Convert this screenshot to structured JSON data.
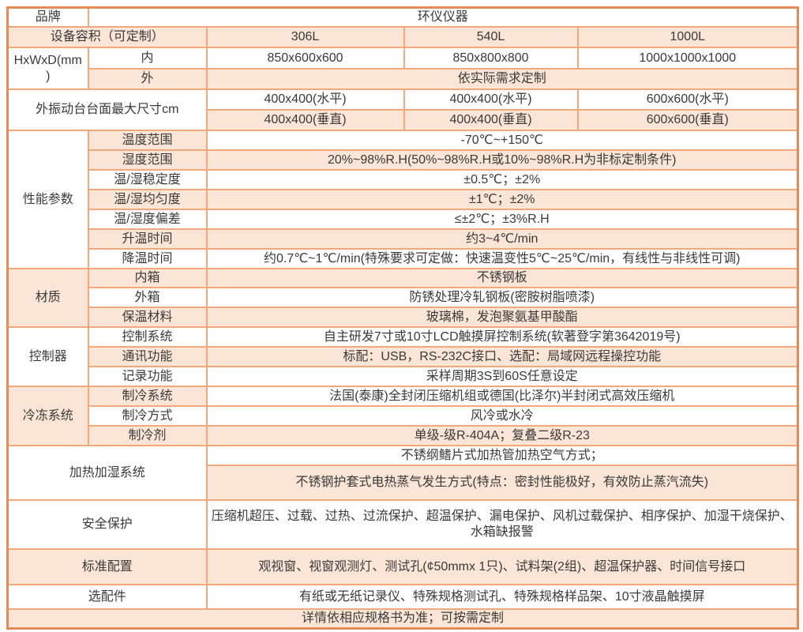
{
  "colors": {
    "outer_border": "#e88a55",
    "inner_border": "#f1a87b",
    "band_fill": "#fbe5d6",
    "text": "#3a3a3a",
    "page_background": "#ffffff"
  },
  "table": {
    "columns": [
      102,
      150,
      250,
      220,
      279
    ],
    "rows": [
      {
        "h": 23,
        "cells": [
          {
            "t": "品牌",
            "name": "brand-label"
          },
          {
            "t": "环仪仪器",
            "c": 4,
            "name": "brand-value"
          }
        ]
      },
      {
        "h": 26,
        "cells": [
          {
            "t": "设备容积（可定制）",
            "c": 2,
            "b": true,
            "name": "capacity-label"
          },
          {
            "t": "306L",
            "b": true,
            "name": "capacity-value-1"
          },
          {
            "t": "540L",
            "b": true,
            "name": "capacity-value-2"
          },
          {
            "t": "1000L",
            "b": true,
            "name": "capacity-value-3"
          }
        ]
      },
      {
        "h": 27,
        "cells": [
          {
            "t": "HxWxD(mm)",
            "r": 2,
            "name": "dimensions-label"
          },
          {
            "t": "内",
            "name": "inner-dim-label"
          },
          {
            "t": "850x600x600",
            "name": "inner-dim-value-1"
          },
          {
            "t": "850x800x800",
            "name": "inner-dim-value-2"
          },
          {
            "t": "1000x1000x1000",
            "name": "inner-dim-value-3"
          }
        ]
      },
      {
        "h": 26,
        "cells": [
          {
            "t": "外",
            "b": true,
            "name": "outer-dim-label"
          },
          {
            "t": "依实际需求定制",
            "c": 3,
            "b": true,
            "name": "outer-dim-value"
          }
        ]
      },
      {
        "h": 26,
        "cells": [
          {
            "t": "外振动台台面最大尺寸cm",
            "c": 2,
            "r": 2,
            "name": "vibration-table-label"
          },
          {
            "t": "400x400(水平)",
            "name": "vibration-h-value-1"
          },
          {
            "t": "400x400(水平)",
            "name": "vibration-h-value-2"
          },
          {
            "t": "600x600(水平)",
            "name": "vibration-h-value-3"
          }
        ]
      },
      {
        "h": 26,
        "cells": [
          {
            "t": "400x400(垂直)",
            "b": true,
            "name": "vibration-v-value-1"
          },
          {
            "t": "400x400(垂直)",
            "b": true,
            "name": "vibration-v-value-2"
          },
          {
            "t": "600x600(垂直)",
            "b": true,
            "name": "vibration-v-value-3"
          }
        ]
      },
      {
        "h": 25,
        "cells": [
          {
            "t": "性能参数",
            "r": 7,
            "name": "performance-section-label"
          },
          {
            "t": "温度范围",
            "b": true,
            "name": "temp-range-label"
          },
          {
            "t": "-70℃~+150℃",
            "c": 3,
            "name": "temp-range-value"
          }
        ]
      },
      {
        "h": 25,
        "cells": [
          {
            "t": "湿度范围",
            "b": true,
            "name": "humidity-range-label"
          },
          {
            "t": "20%~98%R.H(50%~98%R.H或10%~98%R.H为非标定制条件)",
            "c": 3,
            "b": true,
            "name": "humidity-range-value"
          }
        ]
      },
      {
        "h": 25,
        "cells": [
          {
            "t": "温/湿稳定度",
            "name": "stability-label"
          },
          {
            "t": "±0.5℃；±2%",
            "c": 3,
            "name": "stability-value"
          }
        ]
      },
      {
        "h": 25,
        "cells": [
          {
            "t": "温/湿均匀度",
            "b": true,
            "name": "uniformity-label"
          },
          {
            "t": "±1℃；±2%",
            "c": 3,
            "b": true,
            "name": "uniformity-value"
          }
        ]
      },
      {
        "h": 25,
        "cells": [
          {
            "t": "温/湿度偏差",
            "name": "deviation-label"
          },
          {
            "t": "≤±2℃；±3%R.H",
            "c": 3,
            "name": "deviation-value"
          }
        ]
      },
      {
        "h": 25,
        "cells": [
          {
            "t": "升温时间",
            "b": true,
            "name": "heatup-time-label"
          },
          {
            "t": "约3~4℃/min",
            "c": 3,
            "b": true,
            "name": "heatup-time-value"
          }
        ]
      },
      {
        "h": 25,
        "cells": [
          {
            "t": "降温时间",
            "name": "cooldown-time-label"
          },
          {
            "t": "约0.7℃~1℃/min(特殊要求可定做：快速温变性5℃~25℃/min，有线性与非线性可调)",
            "c": 3,
            "name": "cooldown-time-value"
          }
        ]
      },
      {
        "h": 24,
        "cells": [
          {
            "t": "材质",
            "r": 3,
            "b": true,
            "name": "material-section-label"
          },
          {
            "t": "内箱",
            "b": true,
            "name": "inner-box-label"
          },
          {
            "t": "不锈钢板",
            "c": 3,
            "b": true,
            "name": "inner-box-value"
          }
        ]
      },
      {
        "h": 25,
        "cells": [
          {
            "t": "外箱",
            "name": "outer-box-label"
          },
          {
            "t": "防锈处理冷轧钢板(密胺树脂喷漆)",
            "c": 3,
            "name": "outer-box-value"
          }
        ]
      },
      {
        "h": 25,
        "cells": [
          {
            "t": "保温材料",
            "b": true,
            "name": "insulation-label"
          },
          {
            "t": "玻璃棉，发泡聚氨基甲酸酯",
            "c": 3,
            "b": true,
            "name": "insulation-value"
          }
        ]
      },
      {
        "h": 25,
        "cells": [
          {
            "t": "控制器",
            "r": 3,
            "name": "controller-section-label"
          },
          {
            "t": "控制系统",
            "name": "control-system-label"
          },
          {
            "t": "自主研发7寸或10寸LCD触摸屏控制系统(软著登字第3642019号)",
            "c": 3,
            "name": "control-system-value"
          }
        ]
      },
      {
        "h": 25,
        "cells": [
          {
            "t": "通讯功能",
            "b": true,
            "name": "communication-label"
          },
          {
            "t": "标配：USB，RS-232C接口、选配：局域网远程操控功能",
            "c": 3,
            "b": true,
            "name": "communication-value"
          }
        ]
      },
      {
        "h": 25,
        "cells": [
          {
            "t": "记录功能",
            "name": "recording-label"
          },
          {
            "t": "采样周期3S到60S任意设定",
            "c": 3,
            "name": "recording-value"
          }
        ]
      },
      {
        "h": 25,
        "cells": [
          {
            "t": "冷冻系统",
            "r": 3,
            "b": true,
            "name": "refrigeration-section-label"
          },
          {
            "t": "制冷系统",
            "b": true,
            "name": "cooling-system-label"
          },
          {
            "t": "法国(泰康)全封闭压缩机组或德国(比泽尔)半封闭式高效压缩机",
            "c": 3,
            "name": "cooling-system-value"
          }
        ]
      },
      {
        "h": 25,
        "cells": [
          {
            "t": "制冷方式",
            "name": "cooling-method-label"
          },
          {
            "t": "风冷或水冷",
            "c": 3,
            "name": "cooling-method-value"
          }
        ]
      },
      {
        "h": 25,
        "cells": [
          {
            "t": "制冷剂",
            "b": true,
            "name": "refrigerant-label"
          },
          {
            "t": "单级-级R-404A；复叠二级R-23",
            "c": 3,
            "b": true,
            "name": "refrigerant-value"
          }
        ]
      },
      {
        "h": 25,
        "cells": [
          {
            "t": "加热加湿系统",
            "c": 2,
            "r": 2,
            "name": "heating-humidifying-label"
          },
          {
            "t": "不锈纲鳍片式加热管加热空气方式；",
            "c": 3,
            "name": "heating-method-value"
          }
        ]
      },
      {
        "h": 44,
        "cells": [
          {
            "t": "不锈钢护套式电热蒸气发生方式(特点：密封性能极好，有效防止蒸汽流失)",
            "c": 3,
            "b": true,
            "name": "humidifying-method-value"
          }
        ]
      },
      {
        "h": 62,
        "cells": [
          {
            "t": "安全保护",
            "c": 2,
            "name": "safety-protection-label"
          },
          {
            "t": "压缩机超压、过载、过热、过流保护、超温保护、漏电保护、风机过载保护、相序保护、加湿干烧保护、水箱缺报警",
            "c": 3,
            "name": "safety-protection-value"
          }
        ]
      },
      {
        "h": 45,
        "cells": [
          {
            "t": "标准配置",
            "c": 2,
            "b": true,
            "name": "standard-config-label"
          },
          {
            "t": "观视窗、视窗观测灯、测试孔(¢50mmx 1只)、试料架(2组)、超温保护器、时间信号接口",
            "c": 3,
            "b": true,
            "name": "standard-config-value"
          }
        ]
      },
      {
        "h": 31,
        "cells": [
          {
            "t": "选配件",
            "c": 2,
            "name": "optional-parts-label"
          },
          {
            "t": "有纸或无纸记录仪、特殊规格测试孔、特殊规格样品架、10寸液晶触摸屏",
            "c": 3,
            "name": "optional-parts-value"
          }
        ]
      },
      {
        "h": 24,
        "cells": [
          {
            "t": "详情依相应规格书为准；可按需定制",
            "c": 5,
            "b": true,
            "name": "footer-note"
          }
        ]
      }
    ]
  }
}
